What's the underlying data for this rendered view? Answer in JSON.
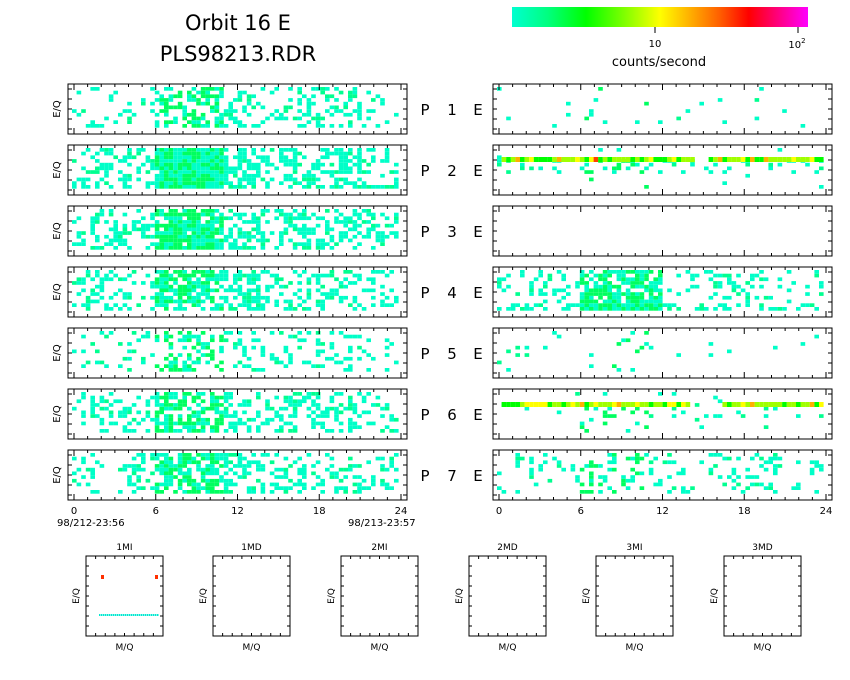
{
  "header": {
    "title_line1": "Orbit 16 E",
    "title_line2": "PLS98213.RDR"
  },
  "colorbar": {
    "label": "counts/second",
    "tick_10": "10",
    "tick_100_base": "10",
    "tick_100_exp": "2",
    "colors": [
      "#00ffd0",
      "#00ff80",
      "#00ff00",
      "#80ff00",
      "#ffff00",
      "#ffb000",
      "#ff6000",
      "#ff0000",
      "#ff0080",
      "#ff00ff"
    ]
  },
  "chart_data": {
    "type": "heatmap",
    "x_ticks": [
      "0",
      "6",
      "12",
      "18",
      "24"
    ],
    "x_range": [
      0,
      24
    ],
    "ylabel": "E/Q",
    "start_time": "98/212-23:56",
    "end_time": "98/213-23:57",
    "row_labels": [
      {
        "p": "P",
        "n": "1",
        "e": "E"
      },
      {
        "p": "P",
        "n": "2",
        "e": "E"
      },
      {
        "p": "P",
        "n": "3",
        "e": "E"
      },
      {
        "p": "P",
        "n": "4",
        "e": "E"
      },
      {
        "p": "P",
        "n": "5",
        "e": "E"
      },
      {
        "p": "P",
        "n": "6",
        "e": "E"
      },
      {
        "p": "P",
        "n": "7",
        "e": "E"
      }
    ],
    "small_panels": [
      {
        "title": "1MI",
        "xlabel": "M/Q",
        "ylabel": "E/Q"
      },
      {
        "title": "1MD",
        "xlabel": "M/Q",
        "ylabel": "E/Q"
      },
      {
        "title": "2MI",
        "xlabel": "M/Q",
        "ylabel": "E/Q"
      },
      {
        "title": "2MD",
        "xlabel": "M/Q",
        "ylabel": "E/Q"
      },
      {
        "title": "3MI",
        "xlabel": "M/Q",
        "ylabel": "E/Q"
      },
      {
        "title": "3MD",
        "xlabel": "M/Q",
        "ylabel": "E/Q"
      }
    ]
  }
}
